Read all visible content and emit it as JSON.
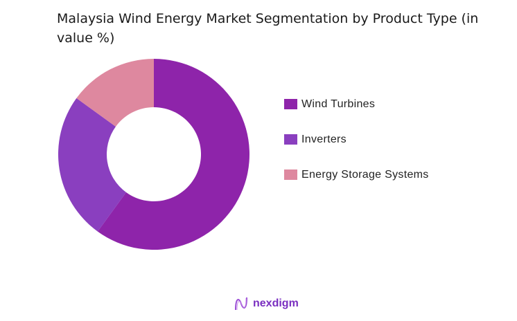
{
  "title": "Malaysia Wind Energy Market Segmentation by Product Type (in value %)",
  "legend": [
    {
      "label": "Wind Turbines",
      "color": "#8e24aa"
    },
    {
      "label": "Inverters",
      "color": "#8a3fbf"
    },
    {
      "label": "Energy Storage Systems",
      "color": "#de889f"
    }
  ],
  "logo": {
    "text": "nexdigm"
  },
  "chart_data": {
    "type": "pie",
    "subtype": "donut",
    "title": "Malaysia Wind Energy Market Segmentation by Product Type (in value %)",
    "categories": [
      "Wind Turbines",
      "Inverters",
      "Energy Storage Systems"
    ],
    "values": [
      60,
      25,
      15
    ],
    "colors": [
      "#8e24aa",
      "#8a3fbf",
      "#de889f"
    ],
    "legend_position": "right"
  }
}
